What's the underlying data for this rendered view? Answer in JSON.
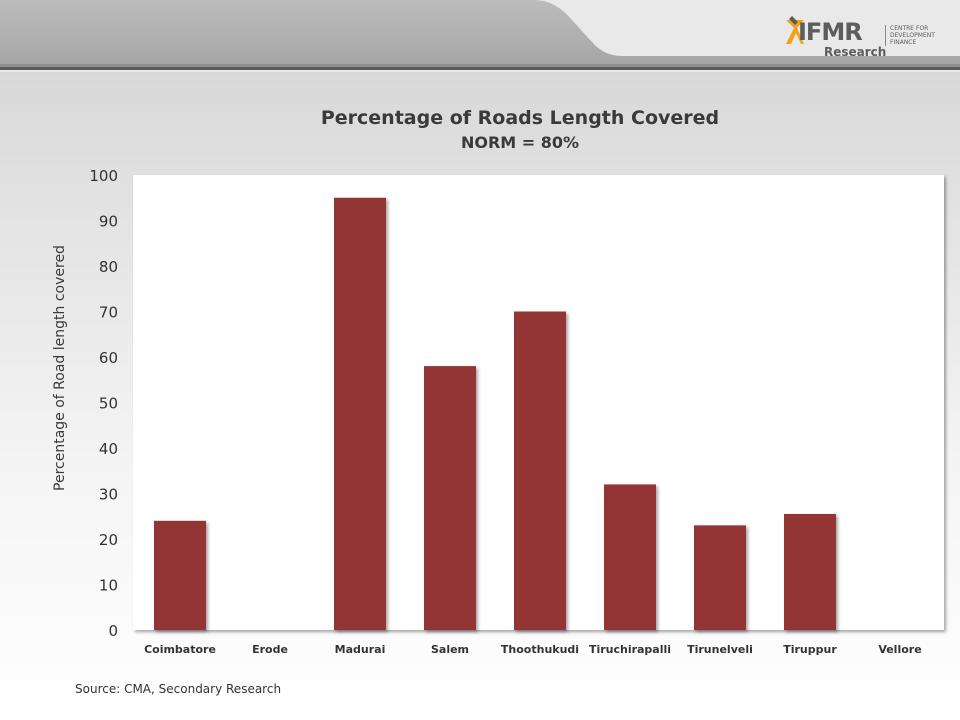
{
  "logo": {
    "word": "IFMR",
    "sub": "Research",
    "side_lines": [
      "CENTRE FOR",
      "DEVELOPMENT",
      "FINANCE"
    ],
    "accent_color": "#f5a21b"
  },
  "source_note": "Source: CMA, Secondary Research",
  "chart_data": {
    "type": "bar",
    "title": "Percentage of Roads Length Covered",
    "subtitle": "NORM = 80%",
    "xlabel": "",
    "ylabel": "Percentage of Road length covered",
    "ylim": [
      0,
      100
    ],
    "yticks": [
      0,
      10,
      20,
      30,
      40,
      50,
      60,
      70,
      80,
      90,
      100
    ],
    "grid": false,
    "legend": "none",
    "bar_color": "#943634",
    "categories": [
      "Coimbatore",
      "Erode",
      "Madurai",
      "Salem",
      "Thoothukudi",
      "Tiruchirapalli",
      "Tirunelveli",
      "Tiruppur",
      "Vellore"
    ],
    "values": [
      24,
      0,
      95,
      58,
      70,
      32,
      23,
      25.5,
      0
    ]
  }
}
